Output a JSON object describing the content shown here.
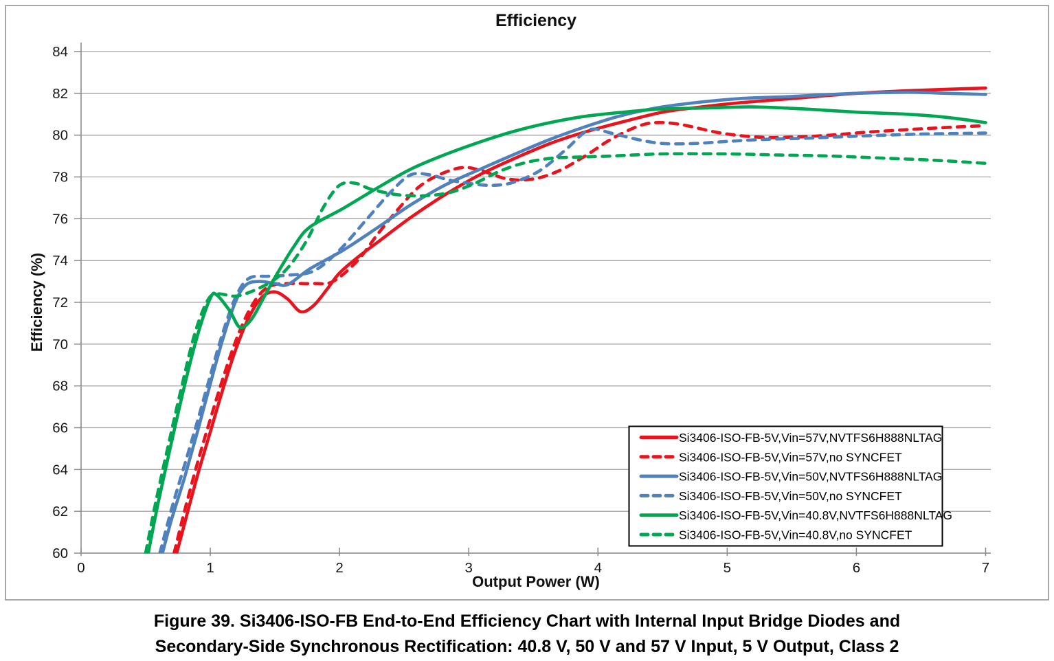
{
  "figure": {
    "frame_border_color": "#8c8c8c",
    "background": "#ffffff",
    "caption_line1": "Figure 39. Si3406-ISO-FB End-to-End Efficiency Chart with Internal Input Bridge Diodes and",
    "caption_line2": "Secondary-Side Synchronous Rectification: 40.8 V, 50 V and 57 V Input, 5 V Output, Class 2"
  },
  "chart_data": {
    "type": "line",
    "title": "Efficiency",
    "xlabel": "Output Power (W)",
    "ylabel": "Efficiency (%)",
    "xlim": [
      0,
      7.04
    ],
    "ylim": [
      60,
      84
    ],
    "x_ticks": [
      0,
      1,
      2,
      3,
      4,
      5,
      6,
      7
    ],
    "y_ticks": [
      60,
      62,
      64,
      66,
      68,
      70,
      72,
      74,
      76,
      78,
      80,
      82,
      84
    ],
    "grid": "horizontal-only",
    "gridline_color": "#a3a3a3",
    "axis_color": "#8a8a8a",
    "tick_label_color": "#161616",
    "legend": {
      "position": "inside-lower-right",
      "border_color": "#000000",
      "background": "#ffffff",
      "text_color": "#000000"
    },
    "series": [
      {
        "key": "vin57v-syncfet",
        "name": "Si3406-ISO-FB-5V,Vin=57V,NVTFS6H888NLTAG",
        "color": "#e8131d",
        "line_style": "solid",
        "points": [
          [
            0.74,
            60
          ],
          [
            0.8,
            61.4
          ],
          [
            0.9,
            63.7
          ],
          [
            1.0,
            65.8
          ],
          [
            1.1,
            67.9
          ],
          [
            1.2,
            69.8
          ],
          [
            1.3,
            71.3
          ],
          [
            1.4,
            72.25
          ],
          [
            1.5,
            72.5
          ],
          [
            1.6,
            72.15
          ],
          [
            1.7,
            71.55
          ],
          [
            1.8,
            71.85
          ],
          [
            1.9,
            72.6
          ],
          [
            2.0,
            73.4
          ],
          [
            2.15,
            74.2
          ],
          [
            2.3,
            74.9
          ],
          [
            2.56,
            76.1
          ],
          [
            2.83,
            77.2
          ],
          [
            3.1,
            78.15
          ],
          [
            3.36,
            78.9
          ],
          [
            3.63,
            79.6
          ],
          [
            3.9,
            80.15
          ],
          [
            4.2,
            80.65
          ],
          [
            4.5,
            81.1
          ],
          [
            4.8,
            81.35
          ],
          [
            5.1,
            81.55
          ],
          [
            5.5,
            81.75
          ],
          [
            6.0,
            82.0
          ],
          [
            6.5,
            82.15
          ],
          [
            7.0,
            82.25
          ]
        ]
      },
      {
        "key": "vin57v-nosyncfet",
        "name": "Si3406-ISO-FB-5V,Vin=57V,no SYNCFET",
        "color": "#e8131d",
        "line_style": "dashed",
        "points": [
          [
            0.72,
            60
          ],
          [
            0.8,
            62.0
          ],
          [
            0.9,
            64.3
          ],
          [
            1.0,
            66.4
          ],
          [
            1.1,
            68.4
          ],
          [
            1.2,
            70.2
          ],
          [
            1.3,
            71.6
          ],
          [
            1.4,
            72.5
          ],
          [
            1.5,
            72.85
          ],
          [
            1.65,
            72.9
          ],
          [
            1.8,
            72.9
          ],
          [
            1.95,
            73.0
          ],
          [
            2.14,
            74.0
          ],
          [
            2.3,
            75.3
          ],
          [
            2.46,
            76.5
          ],
          [
            2.61,
            77.5
          ],
          [
            2.77,
            78.1
          ],
          [
            2.95,
            78.45
          ],
          [
            3.1,
            78.3
          ],
          [
            3.3,
            77.9
          ],
          [
            3.5,
            77.9
          ],
          [
            3.7,
            78.3
          ],
          [
            3.9,
            79.0
          ],
          [
            4.1,
            79.8
          ],
          [
            4.3,
            80.4
          ],
          [
            4.45,
            80.6
          ],
          [
            4.65,
            80.5
          ],
          [
            4.95,
            80.1
          ],
          [
            5.25,
            79.9
          ],
          [
            5.5,
            79.9
          ],
          [
            5.8,
            80.0
          ],
          [
            6.1,
            80.15
          ],
          [
            6.5,
            80.3
          ],
          [
            6.8,
            80.4
          ],
          [
            7.0,
            80.45
          ]
        ]
      },
      {
        "key": "vin50v-syncfet",
        "name": "Si3406-ISO-FB-5V,Vin=50V,NVTFS6H888NLTAG",
        "color": "#4f81bd",
        "line_style": "solid",
        "points": [
          [
            0.63,
            60
          ],
          [
            0.7,
            61.6
          ],
          [
            0.8,
            63.6
          ],
          [
            0.9,
            65.8
          ],
          [
            1.0,
            68.1
          ],
          [
            1.1,
            70.3
          ],
          [
            1.2,
            72.1
          ],
          [
            1.28,
            72.85
          ],
          [
            1.38,
            73.0
          ],
          [
            1.5,
            72.9
          ],
          [
            1.6,
            72.85
          ],
          [
            1.77,
            73.6
          ],
          [
            2.03,
            74.5
          ],
          [
            2.3,
            75.6
          ],
          [
            2.56,
            76.7
          ],
          [
            2.83,
            77.65
          ],
          [
            3.1,
            78.4
          ],
          [
            3.36,
            79.1
          ],
          [
            3.63,
            79.8
          ],
          [
            3.9,
            80.4
          ],
          [
            4.16,
            80.9
          ],
          [
            4.45,
            81.3
          ],
          [
            4.75,
            81.55
          ],
          [
            5.1,
            81.75
          ],
          [
            5.5,
            81.85
          ],
          [
            6.0,
            82.0
          ],
          [
            6.4,
            82.05
          ],
          [
            6.7,
            82.0
          ],
          [
            7.0,
            81.95
          ]
        ]
      },
      {
        "key": "vin50v-nosyncfet",
        "name": "Si3406-ISO-FB-5V,Vin=50V,no SYNCFET",
        "color": "#4f81bd",
        "line_style": "dashed",
        "points": [
          [
            0.61,
            60
          ],
          [
            0.7,
            62.1
          ],
          [
            0.8,
            64.2
          ],
          [
            0.9,
            66.3
          ],
          [
            1.0,
            68.5
          ],
          [
            1.1,
            70.6
          ],
          [
            1.2,
            72.3
          ],
          [
            1.3,
            73.15
          ],
          [
            1.45,
            73.25
          ],
          [
            1.6,
            73.3
          ],
          [
            1.8,
            73.5
          ],
          [
            2.0,
            74.5
          ],
          [
            2.2,
            75.9
          ],
          [
            2.4,
            77.3
          ],
          [
            2.55,
            78.1
          ],
          [
            2.7,
            78.1
          ],
          [
            2.85,
            77.85
          ],
          [
            3.05,
            77.65
          ],
          [
            3.2,
            77.6
          ],
          [
            3.35,
            77.75
          ],
          [
            3.55,
            78.3
          ],
          [
            3.75,
            79.3
          ],
          [
            3.93,
            80.25
          ],
          [
            4.1,
            80.1
          ],
          [
            4.3,
            79.8
          ],
          [
            4.5,
            79.6
          ],
          [
            4.75,
            79.6
          ],
          [
            5.0,
            79.7
          ],
          [
            5.3,
            79.8
          ],
          [
            5.6,
            79.85
          ],
          [
            6.0,
            79.95
          ],
          [
            6.5,
            80.05
          ],
          [
            7.0,
            80.1
          ]
        ]
      },
      {
        "key": "vin40v8-syncfet",
        "name": "Si3406-ISO-FB-5V,Vin=40.8V,NVTFS6H888NLTAG",
        "color": "#00a651",
        "line_style": "solid",
        "points": [
          [
            0.52,
            60
          ],
          [
            0.6,
            62.5
          ],
          [
            0.7,
            65.3
          ],
          [
            0.8,
            68.0
          ],
          [
            0.9,
            70.4
          ],
          [
            1.0,
            72.2
          ],
          [
            1.05,
            72.35
          ],
          [
            1.15,
            71.6
          ],
          [
            1.23,
            70.8
          ],
          [
            1.32,
            71.2
          ],
          [
            1.42,
            72.3
          ],
          [
            1.52,
            73.4
          ],
          [
            1.65,
            74.7
          ],
          [
            1.77,
            75.6
          ],
          [
            2.03,
            76.5
          ],
          [
            2.3,
            77.5
          ],
          [
            2.56,
            78.4
          ],
          [
            2.83,
            79.1
          ],
          [
            3.1,
            79.7
          ],
          [
            3.36,
            80.2
          ],
          [
            3.63,
            80.6
          ],
          [
            3.9,
            80.9
          ],
          [
            4.2,
            81.1
          ],
          [
            4.5,
            81.25
          ],
          [
            4.85,
            81.3
          ],
          [
            5.2,
            81.35
          ],
          [
            5.6,
            81.25
          ],
          [
            6.0,
            81.1
          ],
          [
            6.4,
            81.0
          ],
          [
            6.7,
            80.85
          ],
          [
            7.0,
            80.6
          ]
        ]
      },
      {
        "key": "vin40v8-nosyncfet",
        "name": "Si3406-ISO-FB-5V,Vin=40.8V,no SYNCFET",
        "color": "#00a651",
        "line_style": "dashed",
        "points": [
          [
            0.5,
            60
          ],
          [
            0.58,
            62.5
          ],
          [
            0.68,
            65.3
          ],
          [
            0.78,
            68.0
          ],
          [
            0.88,
            70.5
          ],
          [
            0.98,
            72.1
          ],
          [
            1.06,
            72.4
          ],
          [
            1.2,
            72.3
          ],
          [
            1.35,
            72.6
          ],
          [
            1.5,
            73.1
          ],
          [
            1.62,
            73.8
          ],
          [
            1.75,
            75.0
          ],
          [
            1.88,
            76.6
          ],
          [
            2.0,
            77.6
          ],
          [
            2.12,
            77.7
          ],
          [
            2.25,
            77.4
          ],
          [
            2.45,
            77.15
          ],
          [
            2.65,
            77.1
          ],
          [
            2.85,
            77.25
          ],
          [
            3.05,
            77.7
          ],
          [
            3.25,
            78.3
          ],
          [
            3.45,
            78.7
          ],
          [
            3.65,
            78.9
          ],
          [
            3.85,
            78.95
          ],
          [
            4.1,
            79.0
          ],
          [
            4.5,
            79.1
          ],
          [
            5.0,
            79.1
          ],
          [
            5.4,
            79.05
          ],
          [
            5.8,
            79.0
          ],
          [
            6.2,
            78.9
          ],
          [
            6.6,
            78.8
          ],
          [
            7.0,
            78.65
          ]
        ]
      }
    ]
  }
}
